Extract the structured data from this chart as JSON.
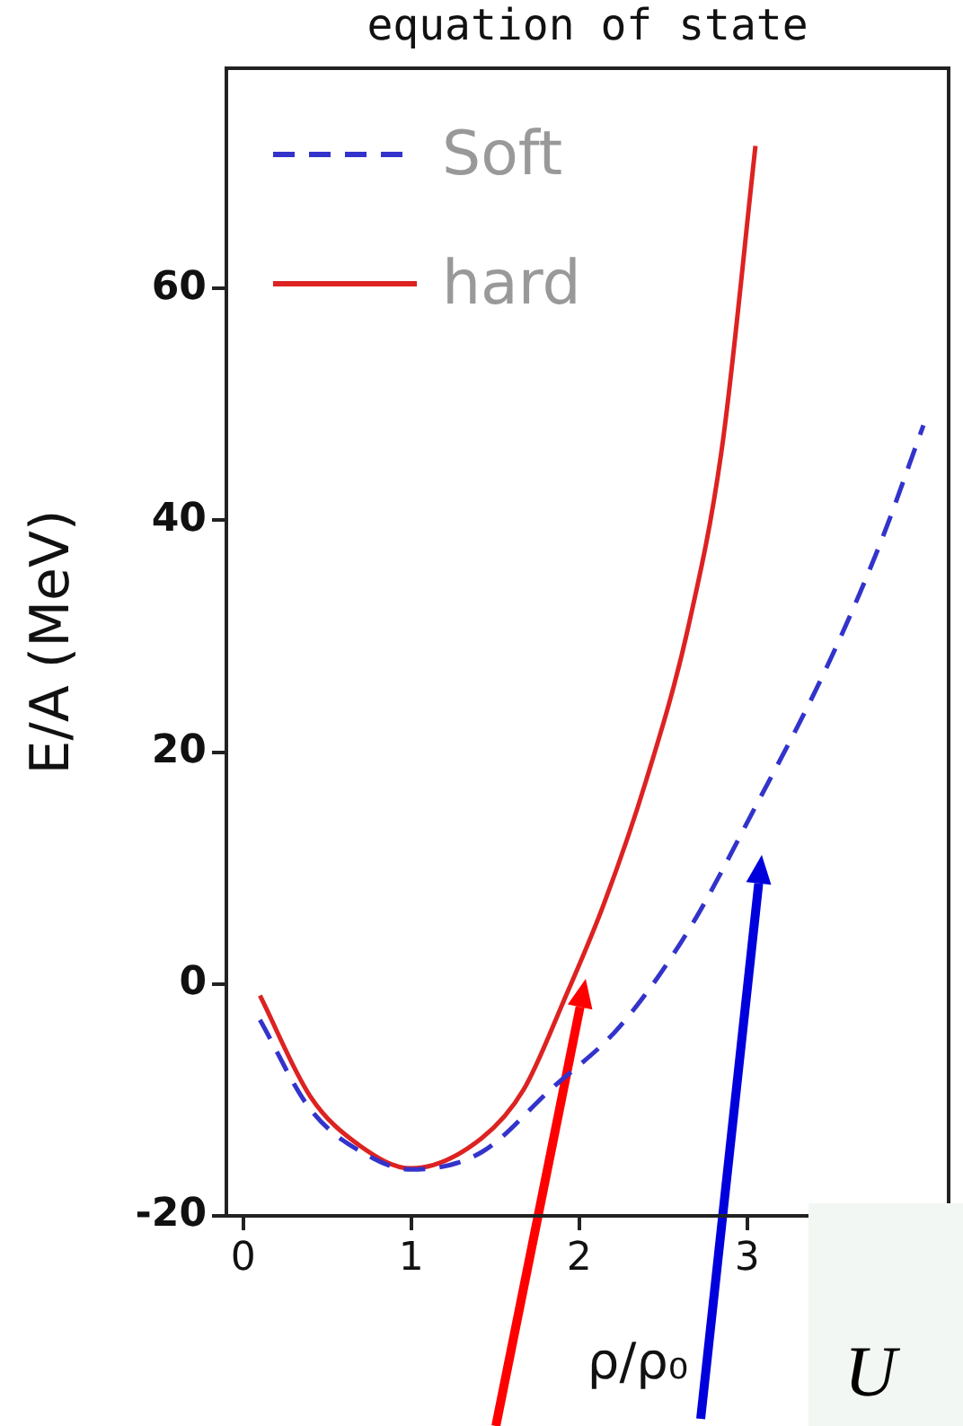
{
  "chart_data": {
    "type": "line",
    "title": "equation of state",
    "xlabel": "ρ/ρ₀",
    "ylabel": "E/A (MeV)",
    "xlim": [
      -0.1,
      4.2
    ],
    "ylim": [
      -20,
      79
    ],
    "xticks": [
      0,
      1,
      2,
      3
    ],
    "yticks": [
      -20,
      0,
      20,
      40,
      60
    ],
    "grid": false,
    "legend": "top left",
    "marker": "none",
    "series": [
      {
        "name": "Soft",
        "color": "#3333cc",
        "line_style": "dashed",
        "x": [
          0.1,
          0.4,
          0.77,
          1.0,
          1.42,
          1.83,
          2.24,
          2.65,
          3.05,
          3.47,
          3.79,
          4.05
        ],
        "values": [
          -3.1,
          -10.8,
          -15,
          -16,
          -14.5,
          -9.1,
          -3.7,
          4.6,
          15.3,
          27.2,
          37.9,
          48.2
        ]
      },
      {
        "name": "hard",
        "color": "#dd2222",
        "line_style": "solid",
        "x": [
          0.1,
          0.4,
          0.69,
          1.0,
          1.42,
          1.67,
          1.91,
          2.15,
          2.4,
          2.65,
          2.85,
          3.05
        ],
        "values": [
          -1,
          -9.7,
          -13.9,
          -15.9,
          -13.3,
          -9.1,
          -1.4,
          7,
          17.6,
          30.8,
          46.2,
          72.3
        ]
      }
    ],
    "annotations": [
      "U"
    ]
  }
}
